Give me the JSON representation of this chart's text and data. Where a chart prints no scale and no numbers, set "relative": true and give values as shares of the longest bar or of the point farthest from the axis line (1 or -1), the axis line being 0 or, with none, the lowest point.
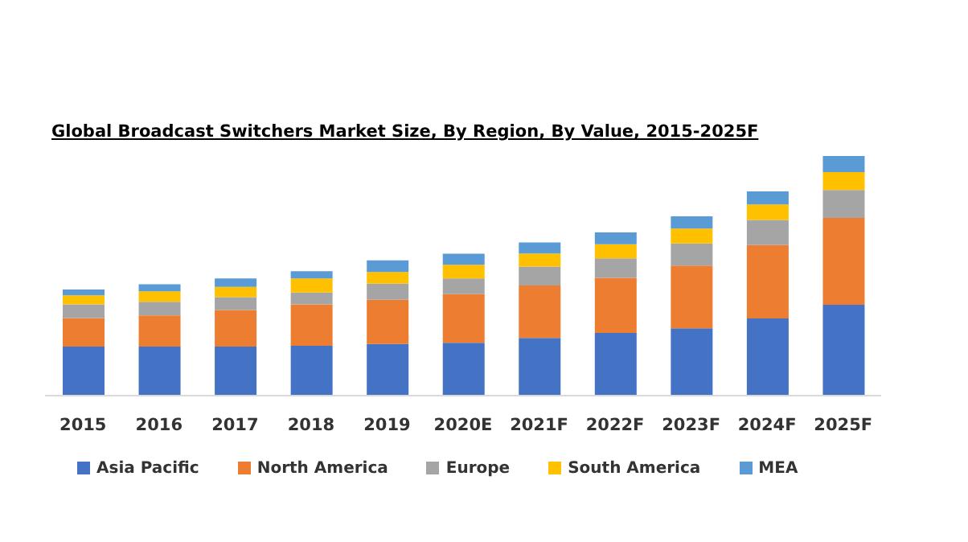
{
  "chart_data": {
    "type": "bar",
    "title": "Global Broadcast Switchers Market Size, By Region, By Value, 2015-2025F",
    "categories": [
      "2015",
      "2016",
      "2017",
      "2018",
      "2019",
      "2020E",
      "2021F",
      "2022F",
      "2023F",
      "2024F",
      "2025F"
    ],
    "stacked": true,
    "relative": true,
    "legend": "bottom",
    "grid": false,
    "series": [
      {
        "name": "Asia Pacific",
        "color": "#4472c4",
        "values": [
          0.205,
          0.205,
          0.205,
          0.208,
          0.216,
          0.221,
          0.241,
          0.262,
          0.281,
          0.322,
          0.379
        ]
      },
      {
        "name": "North America",
        "color": "#ed7d31",
        "values": [
          0.119,
          0.13,
          0.152,
          0.173,
          0.184,
          0.203,
          0.219,
          0.23,
          0.262,
          0.306,
          0.363
        ]
      },
      {
        "name": "Europe",
        "color": "#a5a5a5",
        "values": [
          0.057,
          0.057,
          0.054,
          0.049,
          0.067,
          0.065,
          0.079,
          0.081,
          0.092,
          0.105,
          0.116
        ]
      },
      {
        "name": "South America",
        "color": "#ffc000",
        "values": [
          0.038,
          0.043,
          0.043,
          0.059,
          0.049,
          0.057,
          0.054,
          0.059,
          0.062,
          0.065,
          0.075
        ]
      },
      {
        "name": "MEA",
        "color": "#5b9bd5",
        "values": [
          0.024,
          0.03,
          0.035,
          0.03,
          0.049,
          0.046,
          0.046,
          0.049,
          0.051,
          0.054,
          0.067
        ]
      }
    ]
  }
}
